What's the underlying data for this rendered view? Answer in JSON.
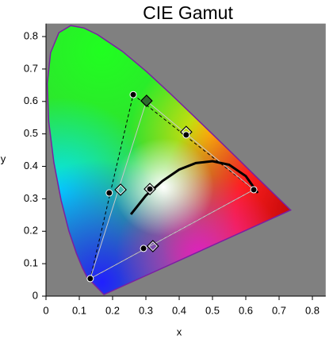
{
  "chart_data": {
    "type": "chromaticity",
    "title": "CIE Gamut",
    "x_label": "x",
    "y_label": "y",
    "xlim": [
      0,
      0.84
    ],
    "ylim": [
      0,
      0.84
    ],
    "xticks": [
      0,
      0.1,
      0.2,
      0.3,
      0.4,
      0.5,
      0.6,
      0.7,
      0.8
    ],
    "yticks": [
      0,
      0.1,
      0.2,
      0.3,
      0.4,
      0.5,
      0.6,
      0.7,
      0.8
    ],
    "background": "#808080",
    "spectral_locus": {
      "color": "#7b1fa2",
      "x": [
        0.1741,
        0.1241,
        0.1096,
        0.0913,
        0.0687,
        0.0454,
        0.0235,
        0.0082,
        0.0039,
        0.0139,
        0.0389,
        0.0743,
        0.1142,
        0.1547,
        0.2296,
        0.3016,
        0.3731,
        0.4441,
        0.5125,
        0.5752,
        0.627,
        0.6915,
        0.7347
      ],
      "y": [
        0.005,
        0.0578,
        0.0868,
        0.1327,
        0.2007,
        0.295,
        0.4127,
        0.5384,
        0.6548,
        0.7502,
        0.812,
        0.8338,
        0.8262,
        0.8059,
        0.7543,
        0.6923,
        0.6245,
        0.5547,
        0.4866,
        0.4242,
        0.3725,
        0.3083,
        0.2653
      ]
    },
    "series": [
      {
        "kind": "polygon",
        "line": "dashed",
        "color": "#000000",
        "x": [
          0.262,
          0.624,
          0.133
        ],
        "y": [
          0.621,
          0.328,
          0.054
        ]
      },
      {
        "kind": "polygon",
        "line": "solid",
        "color": "#c8c8c8",
        "x": [
          0.302,
          0.624,
          0.133
        ],
        "y": [
          0.602,
          0.328,
          0.054
        ]
      },
      {
        "kind": "line",
        "line": "solid",
        "color": "#000000",
        "width": 3,
        "x": [
          0.255,
          0.3,
          0.35,
          0.4,
          0.45,
          0.5,
          0.55,
          0.6,
          0.636
        ],
        "y": [
          0.252,
          0.31,
          0.355,
          0.39,
          0.41,
          0.416,
          0.405,
          0.37,
          0.318
        ]
      },
      {
        "kind": "markers",
        "marker": "diamond",
        "filled": true,
        "color": "#2e6b2e",
        "x": [
          0.302
        ],
        "y": [
          0.602
        ]
      },
      {
        "kind": "markers",
        "marker": "diamond",
        "filled": false,
        "color": "#000000",
        "x": [
          0.421,
          0.224,
          0.312,
          0.321
        ],
        "y": [
          0.506,
          0.328,
          0.33,
          0.154
        ]
      },
      {
        "kind": "markers",
        "marker": "circle",
        "filled": true,
        "color": "#000000",
        "x": [
          0.262,
          0.421,
          0.624,
          0.19,
          0.293,
          0.133,
          0.312
        ],
        "y": [
          0.621,
          0.497,
          0.328,
          0.318,
          0.147,
          0.054,
          0.33
        ]
      }
    ]
  }
}
